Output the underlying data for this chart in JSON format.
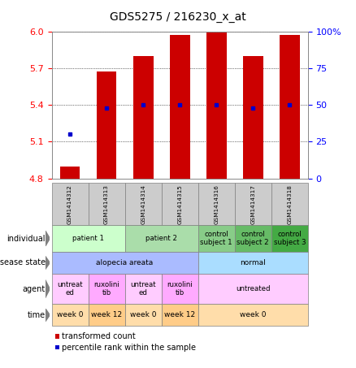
{
  "title": "GDS5275 / 216230_x_at",
  "samples": [
    "GSM1414312",
    "GSM1414313",
    "GSM1414314",
    "GSM1414315",
    "GSM1414316",
    "GSM1414317",
    "GSM1414318"
  ],
  "transformed_count": [
    4.9,
    5.67,
    5.8,
    5.97,
    5.99,
    5.8,
    5.97
  ],
  "percentile_rank": [
    30,
    48,
    50,
    50,
    50,
    48,
    50
  ],
  "ylim_left": [
    4.8,
    6.0
  ],
  "ylim_right": [
    0,
    100
  ],
  "yticks_left": [
    4.8,
    5.1,
    5.4,
    5.7,
    6.0
  ],
  "yticks_right": [
    0,
    25,
    50,
    75,
    100
  ],
  "ytick_labels_right": [
    "0",
    "25",
    "50",
    "75",
    "100%"
  ],
  "bar_color": "#cc0000",
  "dot_color": "#0000cc",
  "header_color": "#cccccc",
  "individual_groups": [
    {
      "label": "patient 1",
      "start": 0,
      "end": 1,
      "color": "#ccffcc"
    },
    {
      "label": "patient 2",
      "start": 2,
      "end": 3,
      "color": "#aaddaa"
    },
    {
      "label": "control\nsubject 1",
      "start": 4,
      "end": 4,
      "color": "#88cc88"
    },
    {
      "label": "control\nsubject 2",
      "start": 5,
      "end": 5,
      "color": "#66bb66"
    },
    {
      "label": "control\nsubject 3",
      "start": 6,
      "end": 6,
      "color": "#44aa44"
    }
  ],
  "disease_groups": [
    {
      "label": "alopecia areata",
      "start": 0,
      "end": 3,
      "color": "#aabbff"
    },
    {
      "label": "normal",
      "start": 4,
      "end": 6,
      "color": "#aaddff"
    }
  ],
  "agent_groups": [
    {
      "label": "untreat\ned",
      "start": 0,
      "end": 0,
      "color": "#ffccff"
    },
    {
      "label": "ruxolini\ntib",
      "start": 1,
      "end": 1,
      "color": "#ffaaff"
    },
    {
      "label": "untreat\ned",
      "start": 2,
      "end": 2,
      "color": "#ffccff"
    },
    {
      "label": "ruxolini\ntib",
      "start": 3,
      "end": 3,
      "color": "#ffaaff"
    },
    {
      "label": "untreated",
      "start": 4,
      "end": 6,
      "color": "#ffccff"
    }
  ],
  "time_groups": [
    {
      "label": "week 0",
      "start": 0,
      "end": 0,
      "color": "#ffddaa"
    },
    {
      "label": "week 12",
      "start": 1,
      "end": 1,
      "color": "#ffcc88"
    },
    {
      "label": "week 0",
      "start": 2,
      "end": 2,
      "color": "#ffddaa"
    },
    {
      "label": "week 12",
      "start": 3,
      "end": 3,
      "color": "#ffcc88"
    },
    {
      "label": "week 0",
      "start": 4,
      "end": 6,
      "color": "#ffddaa"
    }
  ]
}
